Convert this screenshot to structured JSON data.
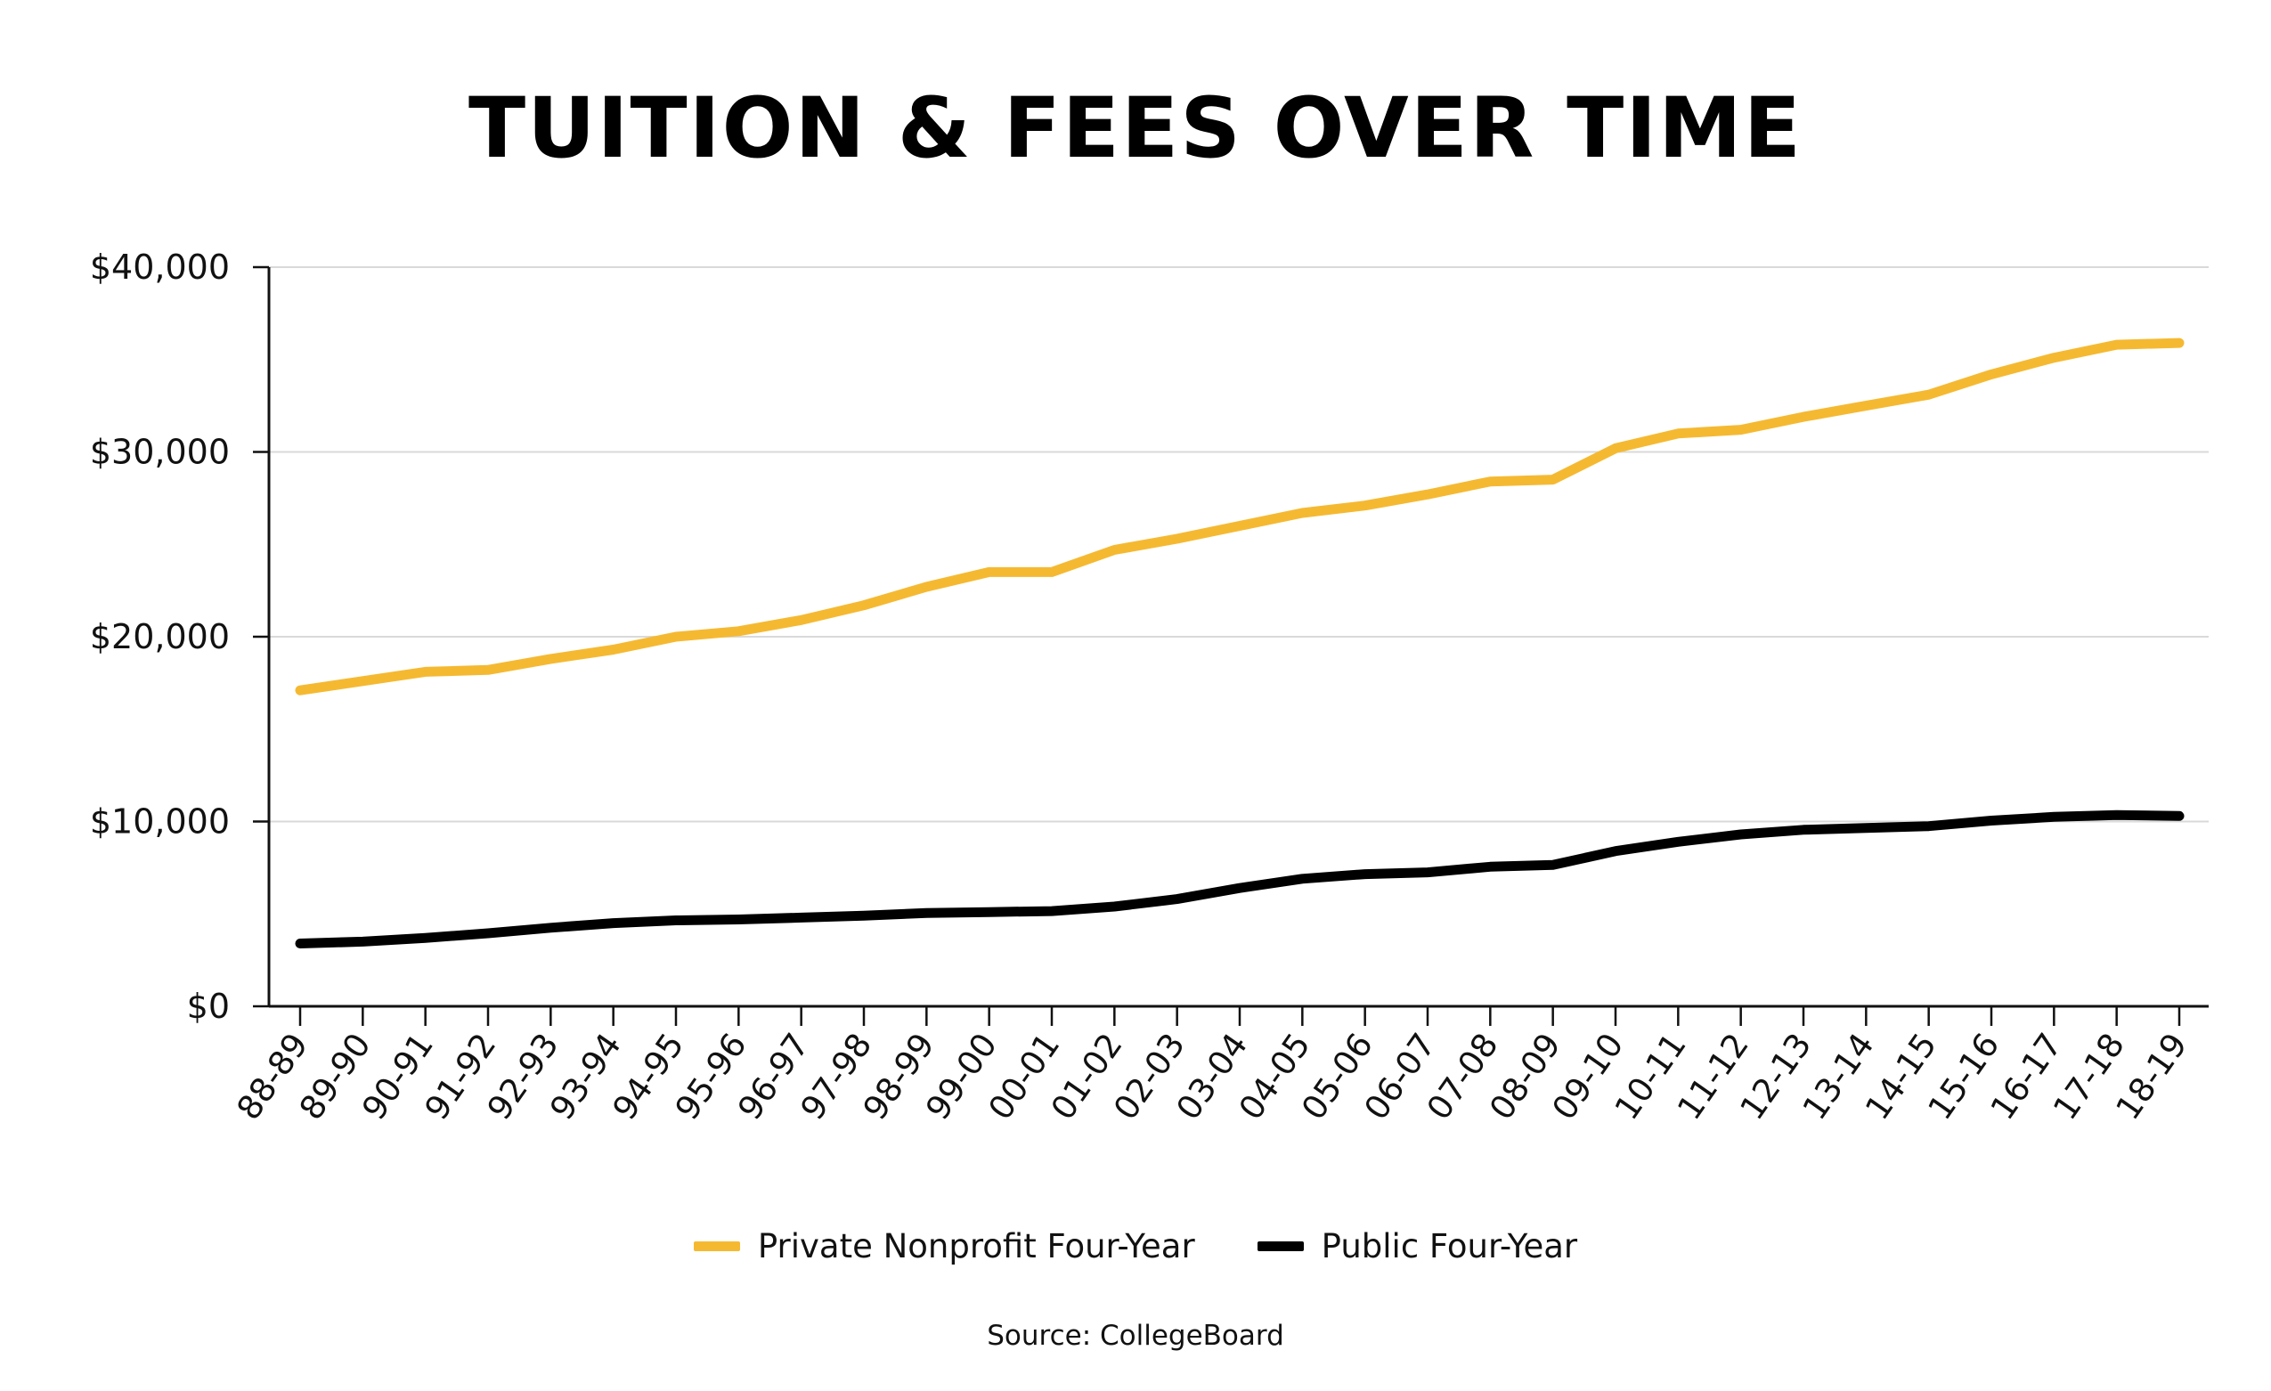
{
  "chart_data": {
    "type": "line",
    "title": "TUITION & FEES OVER TIME",
    "categories": [
      "88-89",
      "89-90",
      "90-91",
      "91-92",
      "92-93",
      "93-94",
      "94-95",
      "95-96",
      "96-97",
      "97-98",
      "98-99",
      "99-00",
      "00-01",
      "01-02",
      "02-03",
      "03-04",
      "04-05",
      "05-06",
      "06-07",
      "07-08",
      "08-09",
      "09-10",
      "10-11",
      "11-12",
      "12-13",
      "13-14",
      "14-15",
      "15-16",
      "16-17",
      "17-18",
      "18-19"
    ],
    "series": [
      {
        "name": "Private Nonprofit Four-Year",
        "color": "#F5B931",
        "values": [
          17100,
          17600,
          18100,
          18200,
          18800,
          19300,
          20000,
          20300,
          20900,
          21700,
          22700,
          23500,
          23500,
          24700,
          25300,
          26000,
          26700,
          27100,
          27700,
          28400,
          28500,
          30200,
          31000,
          31200,
          31900,
          32500,
          33100,
          34200,
          35100,
          35800,
          35900
        ]
      },
      {
        "name": "Public Four-Year",
        "color": "#000000",
        "values": [
          3400,
          3500,
          3700,
          3950,
          4250,
          4500,
          4650,
          4700,
          4800,
          4900,
          5050,
          5100,
          5150,
          5400,
          5800,
          6400,
          6900,
          7150,
          7250,
          7550,
          7650,
          8400,
          8900,
          9300,
          9550,
          9650,
          9750,
          10050,
          10250,
          10350,
          10300
        ]
      }
    ],
    "y_ticks": [
      0,
      10000,
      20000,
      30000,
      40000
    ],
    "y_tick_labels": [
      "$0",
      "$10,000",
      "$20,000",
      "$30,000",
      "$40,000"
    ],
    "ylim": [
      0,
      40000
    ],
    "grid": true,
    "legend_position": "bottom-center",
    "xlabel": "",
    "ylabel": "",
    "source": "Source: CollegeBoard"
  }
}
